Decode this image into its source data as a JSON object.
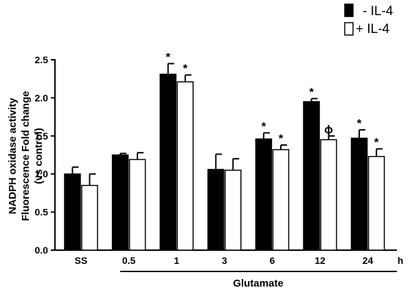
{
  "chart_data": {
    "type": "bar",
    "title": "",
    "ylabel_lines": [
      "NADPH oxidase activity",
      "Fluorescence Fold change",
      "(vs control)"
    ],
    "xlabel": "",
    "x_unit": "h",
    "group_label": "Glutamate",
    "categories": [
      "SS",
      "0.5",
      "1",
      "3",
      "6",
      "12",
      "24"
    ],
    "ylim": [
      0.0,
      2.5
    ],
    "yticks": [
      "0.0",
      "0.5",
      "1.0",
      "1.5",
      "2.0",
      "2.5"
    ],
    "grid": false,
    "legend_position": "top-right",
    "series": [
      {
        "name": "-  IL-4",
        "color": "#000000",
        "values": [
          1.0,
          1.25,
          2.31,
          1.06,
          1.46,
          1.95,
          1.47
        ],
        "errors": [
          0.09,
          0.02,
          0.14,
          0.2,
          0.08,
          0.04,
          0.11
        ],
        "annotations": [
          "",
          "",
          "*",
          "",
          "*",
          "*",
          "*"
        ]
      },
      {
        "name": "+ IL-4",
        "color": "#ffffff",
        "values": [
          0.85,
          1.19,
          2.21,
          1.05,
          1.32,
          1.45,
          1.23
        ],
        "errors": [
          0.15,
          0.09,
          0.09,
          0.15,
          0.06,
          0.05,
          0.1
        ],
        "annotations": [
          "",
          "",
          "*",
          "",
          "*",
          "ϕ",
          "*"
        ]
      }
    ]
  }
}
